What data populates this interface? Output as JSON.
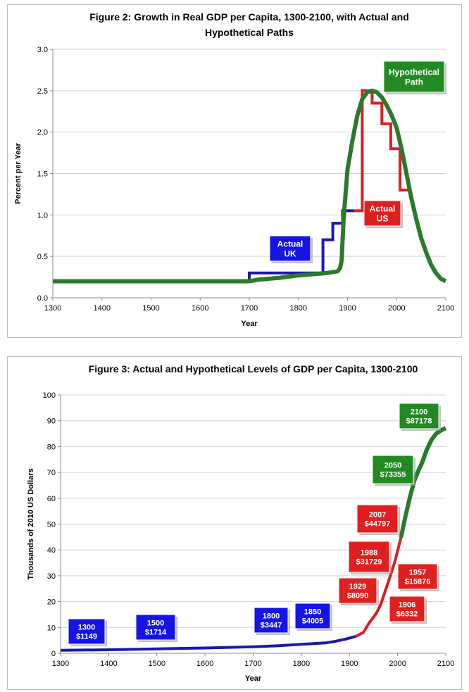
{
  "chart_data": [
    {
      "type": "line",
      "title_lines": [
        "Figure 2: Growth in Real GDP per Capita, 1300-2100, with Actual and",
        "Hypothetical Paths"
      ],
      "xlabel": "Year",
      "ylabel": "Percent per Year",
      "xlim": [
        1300,
        2100
      ],
      "ylim": [
        0,
        3.0
      ],
      "x_ticks": [
        "1300",
        "1400",
        "1500",
        "1600",
        "1700",
        "1800",
        "1900",
        "2000",
        "2100"
      ],
      "y_ticks": [
        "0.0",
        "0.5",
        "1.0",
        "1.5",
        "2.0",
        "2.5",
        "3.0"
      ],
      "grid": true,
      "series": [
        {
          "color": "#1a1aa8",
          "step": true,
          "x": [
            1300,
            1700,
            1700,
            1850,
            1850,
            1870,
            1870,
            1890,
            1890,
            1913
          ],
          "y": [
            0.2,
            0.2,
            0.3,
            0.3,
            0.7,
            0.7,
            0.9,
            0.9,
            1.05,
            1.05
          ]
        },
        {
          "color": "#d92020",
          "step": true,
          "x": [
            1913,
            1930,
            1930,
            1950,
            1950,
            1970,
            1970,
            1988,
            1988,
            2007,
            2007,
            2030
          ],
          "y": [
            1.05,
            1.05,
            2.5,
            2.5,
            2.35,
            2.35,
            2.1,
            2.1,
            1.8,
            1.8,
            1.3,
            1.3
          ]
        },
        {
          "color": "#2a7a2a",
          "step": false,
          "x": [
            1300,
            1700,
            1720,
            1760,
            1800,
            1840,
            1860,
            1880,
            1885,
            1888,
            1892,
            1900,
            1910,
            1920,
            1930,
            1940,
            1950,
            1960,
            1970,
            1980,
            1990,
            2000,
            2010,
            2020,
            2030,
            2040,
            2050,
            2060,
            2070,
            2080,
            2090,
            2100
          ],
          "y": [
            0.2,
            0.2,
            0.22,
            0.24,
            0.27,
            0.29,
            0.3,
            0.32,
            0.36,
            0.45,
            0.95,
            1.55,
            1.9,
            2.2,
            2.4,
            2.48,
            2.5,
            2.48,
            2.42,
            2.32,
            2.2,
            2.05,
            1.8,
            1.5,
            1.2,
            0.95,
            0.72,
            0.55,
            0.4,
            0.3,
            0.23,
            0.2
          ]
        }
      ],
      "callouts": [
        {
          "lines": [
            "Actual",
            "UK"
          ],
          "color": "#1414e6"
        },
        {
          "lines": [
            "Actual",
            "US"
          ],
          "color": "#e02020"
        },
        {
          "lines": [
            "Hypothetical",
            "Path"
          ],
          "color": "#218a21"
        }
      ]
    },
    {
      "type": "line",
      "title_lines": [
        "Figure 3: Actual and Hypothetical Levels of GDP per Capita, 1300-2100"
      ],
      "xlabel": "Year",
      "ylabel": "Thousands of 2010 US Dollars",
      "xlim": [
        1300,
        2100
      ],
      "ylim": [
        0,
        100
      ],
      "x_ticks": [
        "1300",
        "1400",
        "1500",
        "1600",
        "1700",
        "1800",
        "1900",
        "2000",
        "2100"
      ],
      "y_ticks": [
        "0",
        "10",
        "20",
        "30",
        "40",
        "50",
        "60",
        "70",
        "80",
        "90",
        "100"
      ],
      "grid": true,
      "series": [
        {
          "color": "#1a1aa8",
          "step": false,
          "x": [
            1300,
            1400,
            1500,
            1600,
            1700,
            1750,
            1800,
            1850,
            1870,
            1890,
            1913
          ],
          "y": [
            1.149,
            1.35,
            1.714,
            2.05,
            2.5,
            2.9,
            3.447,
            4.005,
            4.6,
            5.4,
            6.5
          ]
        },
        {
          "color": "#d92020",
          "step": false,
          "x": [
            1913,
            1929,
            1940,
            1950,
            1957,
            1965,
            1975,
            1988,
            1995,
            2007
          ],
          "y": [
            6.5,
            8.09,
            11.5,
            14.0,
            15.876,
            19.0,
            24.5,
            31.729,
            36.0,
            44.797
          ]
        },
        {
          "color": "#2a7a2a",
          "step": false,
          "x": [
            2007,
            2015,
            2025,
            2035,
            2045,
            2050,
            2060,
            2070,
            2080,
            2090,
            2100
          ],
          "y": [
            44.797,
            52.0,
            60.0,
            67.0,
            71.5,
            73.355,
            78.5,
            82.5,
            85.0,
            86.3,
            87.178
          ]
        }
      ],
      "callouts": [
        {
          "lines": [
            "1300",
            "$1149"
          ],
          "color": "#1414e6"
        },
        {
          "lines": [
            "1500",
            "$1714"
          ],
          "color": "#1414e6"
        },
        {
          "lines": [
            "1800",
            "$3447"
          ],
          "color": "#1414e6"
        },
        {
          "lines": [
            "1850",
            "$4005"
          ],
          "color": "#1414e6"
        },
        {
          "lines": [
            "1906",
            "$6332"
          ],
          "color": "#e02020"
        },
        {
          "lines": [
            "1929",
            "$8090"
          ],
          "color": "#e02020"
        },
        {
          "lines": [
            "1957",
            "$15876"
          ],
          "color": "#e02020"
        },
        {
          "lines": [
            "1988",
            "$31729"
          ],
          "color": "#e02020"
        },
        {
          "lines": [
            "2007",
            "$44797"
          ],
          "color": "#e02020"
        },
        {
          "lines": [
            "2050",
            "$73355"
          ],
          "color": "#218a21"
        },
        {
          "lines": [
            "2100",
            "$87178"
          ],
          "color": "#218a21"
        }
      ]
    }
  ]
}
